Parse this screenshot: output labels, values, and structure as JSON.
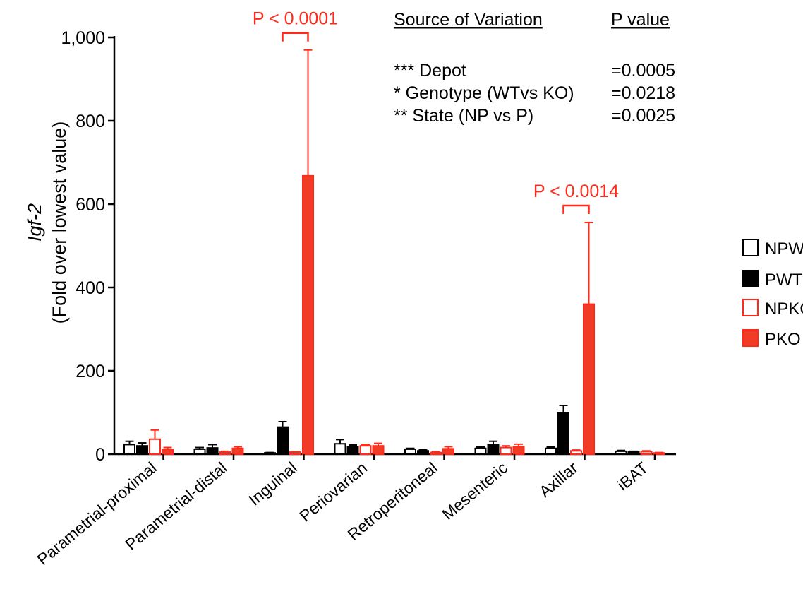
{
  "chart_data": {
    "type": "bar",
    "ylabel_gene": "Igf-2",
    "ylabel_sub": "(Fold over lowest value)",
    "ylim": [
      0,
      1000
    ],
    "yticks": [
      "0",
      "200",
      "400",
      "600",
      "800",
      "1,000"
    ],
    "ytick_values": [
      0,
      200,
      400,
      600,
      800,
      1000
    ],
    "categories": [
      "Parametrial-proximal",
      "Parametrial-distal",
      "Inguinal",
      "Periovarian",
      "Retroperitoneal",
      "Mesenteric",
      "Axillar",
      "iBAT"
    ],
    "series": [
      {
        "name": "NPWT",
        "values": [
          23,
          12,
          3,
          25,
          12,
          14,
          14,
          7
        ],
        "errors": [
          8,
          4,
          1,
          10,
          2,
          3,
          3,
          2
        ]
      },
      {
        "name": "PWT",
        "values": [
          20,
          15,
          65,
          17,
          8,
          22,
          100,
          5
        ],
        "errors": [
          7,
          8,
          13,
          5,
          3,
          9,
          17,
          2
        ]
      },
      {
        "name": "NPKO",
        "values": [
          36,
          5,
          5,
          20,
          4,
          16,
          8,
          6
        ],
        "errors": [
          22,
          2,
          1,
          3,
          2,
          4,
          2,
          2
        ]
      },
      {
        "name": "PKO",
        "values": [
          11,
          14,
          668,
          20,
          13,
          18,
          360,
          3
        ],
        "errors": [
          5,
          4,
          302,
          6,
          5,
          6,
          196,
          1
        ]
      }
    ],
    "colors": {
      "wt": "#000000",
      "ko": "#ff2a1a",
      "ko_fill": "#f03b27",
      "annotation": "#ff2a1a"
    },
    "annotations": [
      {
        "text": "P < 0.0001",
        "category_index": 2
      },
      {
        "text": "P < 0.0014",
        "category_index": 6
      }
    ],
    "stats_table": {
      "header_source": "Source of Variation",
      "header_p": "P value",
      "rows": [
        {
          "source": "*** Depot",
          "p": "=0.0005"
        },
        {
          "source": "* Genotype (WTvs KO)",
          "p": "=0.0218"
        },
        {
          "source": "** State (NP vs P)",
          "p": "=0.0025"
        }
      ]
    },
    "legend": {
      "placement": "right",
      "items": [
        "NPWT",
        "PWT",
        "NPKO",
        "PKO"
      ]
    }
  }
}
